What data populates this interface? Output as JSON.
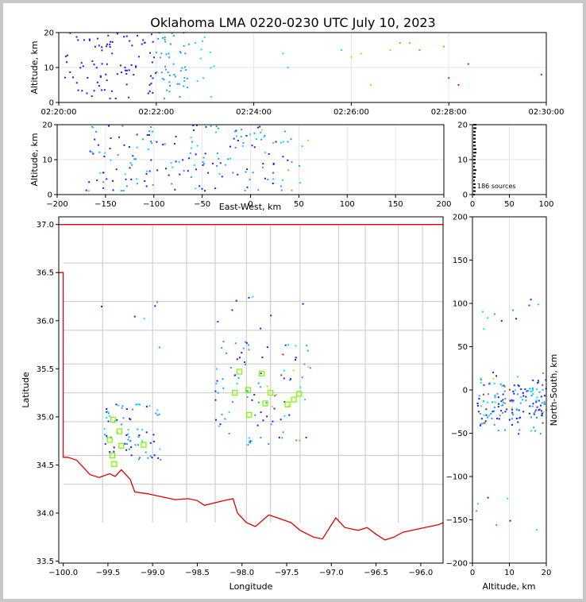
{
  "chart_data": {
    "type": "scatter",
    "title": "Oklahoma LMA 0220-0230 UTC July 10, 2023",
    "colors": {
      "early": "#1a1aff",
      "mid": "#1ea0ff",
      "late": "#00e5ff",
      "yellow": "#d6d600",
      "orange": "#ff8c00",
      "red": "#e02020",
      "station": "#7cfc00",
      "state_border": "#e00000",
      "county_lines": "#c8c8c8"
    },
    "time_panel": {
      "ylabel": "Altitude, km",
      "ylim": [
        0,
        20
      ],
      "yticks": [
        "0",
        "10",
        "20"
      ],
      "xticks": [
        "02:20:00",
        "02:22:00",
        "02:24:00",
        "02:26:00",
        "02:28:00",
        "02:30:00"
      ],
      "xlim_minutes": [
        0,
        10
      ],
      "sample_points": [
        {
          "t": 0.8,
          "alt": 16
        },
        {
          "t": 1.2,
          "alt": 12
        },
        {
          "t": 1.7,
          "alt": 18
        },
        {
          "t": 2.4,
          "alt": 13
        },
        {
          "t": 2.9,
          "alt": 16
        },
        {
          "t": 3.3,
          "alt": 13
        },
        {
          "t": 3.6,
          "alt": 18
        },
        {
          "t": 4.2,
          "alt": 14
        },
        {
          "t": 6.3,
          "alt": 13
        },
        {
          "t": 6.8,
          "alt": 5
        },
        {
          "t": 7.2,
          "alt": 15
        },
        {
          "t": 7.5,
          "alt": 17
        },
        {
          "t": 8.1,
          "alt": 16
        },
        {
          "t": 8.3,
          "alt": 4
        },
        {
          "t": 8.7,
          "alt": 11
        },
        {
          "t": 9.8,
          "alt": 8
        }
      ]
    },
    "ew_panel": {
      "xlabel": "East-West, km",
      "ylabel": "Altitude, km",
      "xlim": [
        -200,
        200
      ],
      "ylim": [
        0,
        20
      ],
      "xticks": [
        "−200",
        "−150",
        "−100",
        "−50",
        "0",
        "50",
        "100",
        "150",
        "200"
      ],
      "yticks": [
        "0",
        "10",
        "20"
      ]
    },
    "hist_panel": {
      "xlim": [
        0,
        100
      ],
      "ylim": [
        0,
        20
      ],
      "xticks": [
        "0",
        "50",
        "100"
      ],
      "yticks": [
        "0",
        "10",
        "20"
      ],
      "source_count_label": "186 sources"
    },
    "map_panel": {
      "xlabel": "Longitude",
      "ylabel": "Latitude",
      "xlim": [
        -100.05,
        -95.75
      ],
      "ylim": [
        33.48,
        37.08
      ],
      "xticks": [
        "−100.0",
        "−99.5",
        "−99.0",
        "−98.5",
        "−98.0",
        "−97.5",
        "−97.0",
        "−96.5",
        "−96.0"
      ],
      "yticks": [
        "33.5",
        "34.0",
        "34.5",
        "35.0",
        "35.5",
        "36.0",
        "36.5",
        "37.0"
      ],
      "stations": [
        [
          -99.44,
          34.97
        ],
        [
          -99.37,
          34.85
        ],
        [
          -99.48,
          34.76
        ],
        [
          -99.45,
          34.6
        ],
        [
          -99.43,
          34.51
        ],
        [
          -99.35,
          34.7
        ],
        [
          -99.1,
          34.71
        ],
        [
          -98.08,
          35.25
        ],
        [
          -98.03,
          35.47
        ],
        [
          -97.93,
          35.28
        ],
        [
          -97.92,
          35.02
        ],
        [
          -97.78,
          35.45
        ],
        [
          -97.68,
          35.25
        ],
        [
          -97.74,
          35.14
        ],
        [
          -97.49,
          35.13
        ],
        [
          -97.42,
          35.18
        ],
        [
          -97.36,
          35.24
        ]
      ]
    },
    "ns_panel": {
      "xlabel": "Altitude, km",
      "ylabel": "North-South, km",
      "xlim": [
        0,
        20
      ],
      "ylim": [
        -200,
        200
      ],
      "xticks": [
        "0",
        "10",
        "20"
      ],
      "yticks": [
        "−200",
        "−150",
        "−100",
        "−50",
        "0",
        "50",
        "100",
        "150",
        "200"
      ]
    }
  }
}
